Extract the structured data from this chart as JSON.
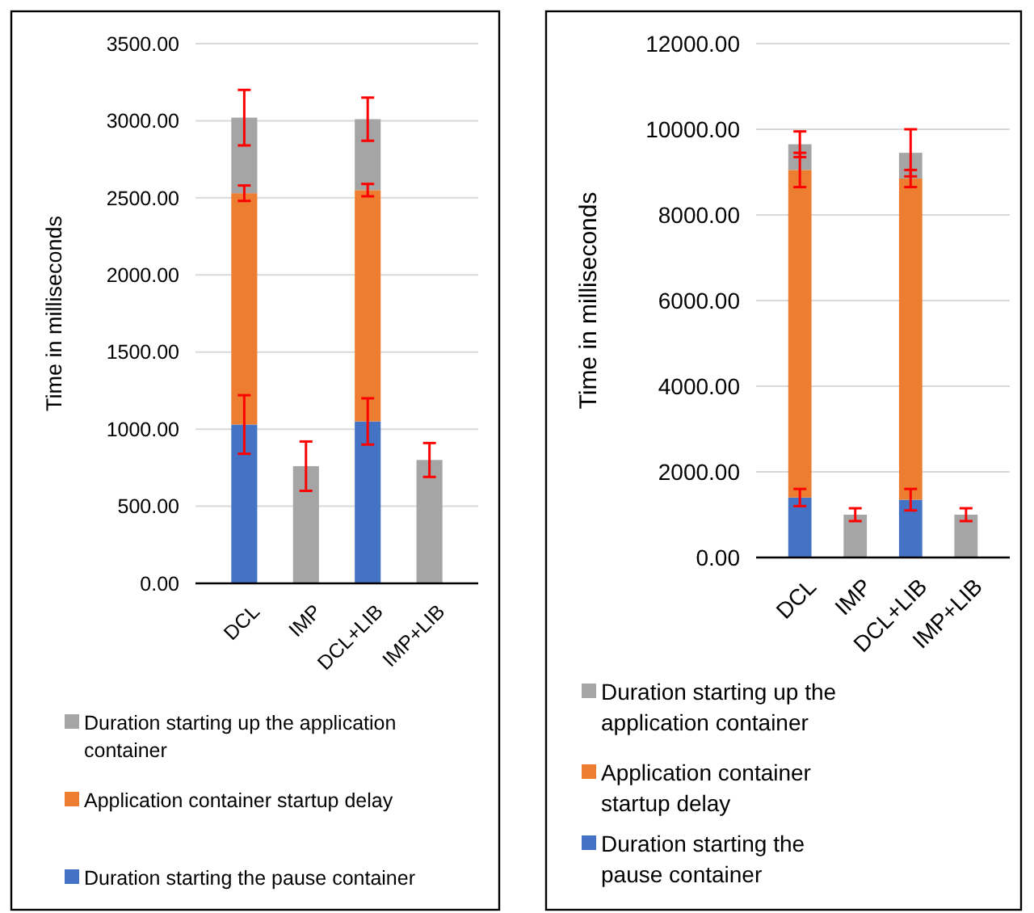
{
  "chart_data": [
    {
      "type": "bar",
      "stacked": true,
      "categories": [
        "DCL",
        "IMP",
        "DCL+LIB",
        "IMP+LIB"
      ],
      "ylabel": "Time in milliseconds",
      "ylim": [
        0,
        3500
      ],
      "yticks": [
        {
          "value": 0,
          "label": "0.00"
        },
        {
          "value": 500,
          "label": "500.00"
        },
        {
          "value": 1000,
          "label": "1000.00"
        },
        {
          "value": 1500,
          "label": "1500.00"
        },
        {
          "value": 2000,
          "label": "2000.00"
        },
        {
          "value": 2500,
          "label": "2500.00"
        },
        {
          "value": 3000,
          "label": "3000.00"
        },
        {
          "value": 3500,
          "label": "3500.00"
        }
      ],
      "grid": "y",
      "legend": "bottom",
      "series": [
        {
          "name": "Duration starting the pause container",
          "color": "#4472c4",
          "values": [
            1030,
            null,
            1050,
            null
          ],
          "errors": [
            190,
            null,
            150,
            null
          ]
        },
        {
          "name": "Application container startup delay",
          "color": "#ed7d31",
          "values": [
            1500,
            null,
            1500,
            null
          ],
          "errors": [
            50,
            null,
            40,
            null
          ]
        },
        {
          "name": "Duration starting up the application container",
          "color": "#a5a5a5",
          "values": [
            490,
            760,
            460,
            800
          ],
          "errors": [
            180,
            160,
            140,
            110
          ]
        }
      ]
    },
    {
      "type": "bar",
      "stacked": true,
      "categories": [
        "DCL",
        "IMP",
        "DCL+LIB",
        "IMP+LIB"
      ],
      "ylabel": "Time in milliseconds",
      "ylim": [
        0,
        12000
      ],
      "yticks": [
        {
          "value": 0,
          "label": "0.00"
        },
        {
          "value": 2000,
          "label": "2000.00"
        },
        {
          "value": 4000,
          "label": "4000.00"
        },
        {
          "value": 6000,
          "label": "6000.00"
        },
        {
          "value": 8000,
          "label": "8000.00"
        },
        {
          "value": 10000,
          "label": "10000.00"
        },
        {
          "value": 12000,
          "label": "12000.00"
        }
      ],
      "grid": "y",
      "legend": "bottom",
      "series": [
        {
          "name": "Duration starting the pause container",
          "color": "#4472c4",
          "values": [
            1400,
            null,
            1350,
            null
          ],
          "errors": [
            200,
            null,
            250,
            null
          ]
        },
        {
          "name": "Application container startup delay",
          "color": "#ed7d31",
          "values": [
            7650,
            null,
            7500,
            null
          ],
          "errors": [
            400,
            null,
            200,
            null
          ]
        },
        {
          "name": "Duration starting up the application container",
          "color": "#a5a5a5",
          "values": [
            600,
            1000,
            600,
            1000
          ],
          "errors": [
            300,
            150,
            550,
            150
          ]
        }
      ]
    }
  ]
}
